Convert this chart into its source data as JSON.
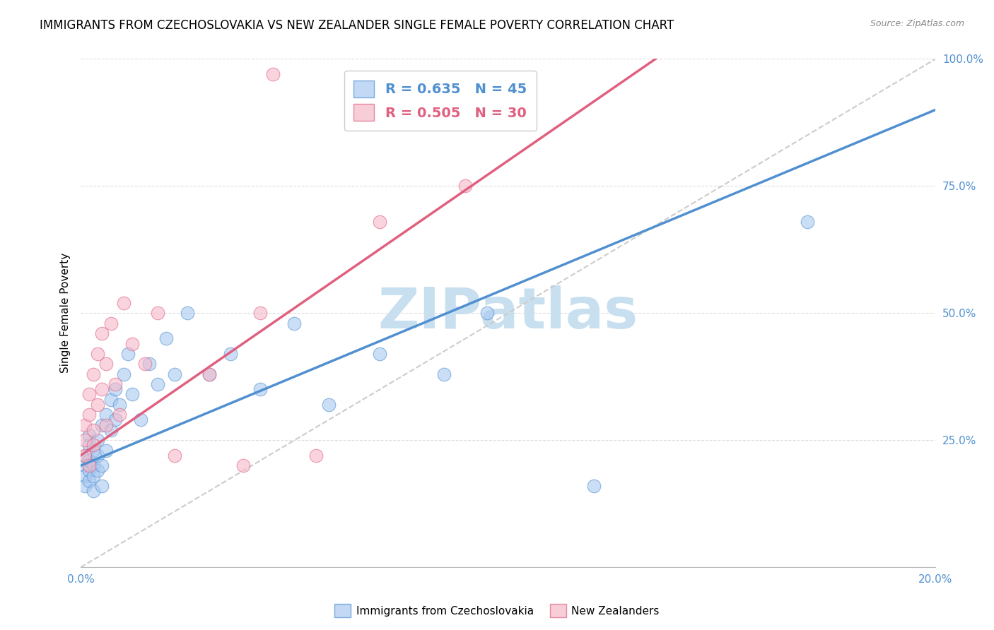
{
  "title": "IMMIGRANTS FROM CZECHOSLOVAKIA VS NEW ZEALANDER SINGLE FEMALE POVERTY CORRELATION CHART",
  "source": "Source: ZipAtlas.com",
  "ylabel": "Single Female Poverty",
  "x_min": 0.0,
  "x_max": 0.2,
  "y_min": 0.0,
  "y_max": 1.0,
  "blue_R": 0.635,
  "blue_N": 45,
  "pink_R": 0.505,
  "pink_N": 30,
  "blue_color": "#A8C8F0",
  "pink_color": "#F5B8C8",
  "blue_line_color": "#5090D0",
  "pink_line_color": "#E06080",
  "diagonal_color": "#CCCCCC",
  "watermark": "ZIPatlas",
  "watermark_color": "#C8DFF0",
  "blue_line_x0": 0.0,
  "blue_line_y0": 0.2,
  "blue_line_x1": 0.2,
  "blue_line_y1": 0.9,
  "pink_line_x0": 0.0,
  "pink_line_y0": 0.22,
  "pink_line_x1": 0.1,
  "pink_line_y1": 0.8,
  "blue_scatter_x": [
    0.001,
    0.001,
    0.001,
    0.001,
    0.002,
    0.002,
    0.002,
    0.002,
    0.002,
    0.003,
    0.003,
    0.003,
    0.003,
    0.004,
    0.004,
    0.004,
    0.005,
    0.005,
    0.005,
    0.006,
    0.006,
    0.007,
    0.007,
    0.008,
    0.008,
    0.009,
    0.01,
    0.011,
    0.012,
    0.014,
    0.016,
    0.018,
    0.02,
    0.022,
    0.025,
    0.03,
    0.035,
    0.042,
    0.05,
    0.058,
    0.07,
    0.085,
    0.095,
    0.12,
    0.17
  ],
  "blue_scatter_y": [
    0.2,
    0.22,
    0.18,
    0.16,
    0.19,
    0.21,
    0.24,
    0.17,
    0.26,
    0.2,
    0.23,
    0.18,
    0.15,
    0.22,
    0.25,
    0.19,
    0.28,
    0.2,
    0.16,
    0.3,
    0.23,
    0.27,
    0.33,
    0.29,
    0.35,
    0.32,
    0.38,
    0.42,
    0.34,
    0.29,
    0.4,
    0.36,
    0.45,
    0.38,
    0.5,
    0.38,
    0.42,
    0.35,
    0.48,
    0.32,
    0.42,
    0.38,
    0.5,
    0.16,
    0.68
  ],
  "pink_scatter_x": [
    0.001,
    0.001,
    0.001,
    0.002,
    0.002,
    0.002,
    0.003,
    0.003,
    0.003,
    0.004,
    0.004,
    0.005,
    0.005,
    0.006,
    0.006,
    0.007,
    0.008,
    0.009,
    0.01,
    0.012,
    0.015,
    0.018,
    0.022,
    0.03,
    0.038,
    0.042,
    0.055,
    0.07,
    0.09,
    0.045
  ],
  "pink_scatter_y": [
    0.22,
    0.25,
    0.28,
    0.2,
    0.3,
    0.34,
    0.24,
    0.38,
    0.27,
    0.42,
    0.32,
    0.35,
    0.46,
    0.4,
    0.28,
    0.48,
    0.36,
    0.3,
    0.52,
    0.44,
    0.4,
    0.5,
    0.22,
    0.38,
    0.2,
    0.5,
    0.22,
    0.68,
    0.75,
    0.97
  ],
  "legend_fontsize": 14,
  "title_fontsize": 12,
  "axis_label_fontsize": 11,
  "tick_fontsize": 11,
  "scatter_size": 180
}
